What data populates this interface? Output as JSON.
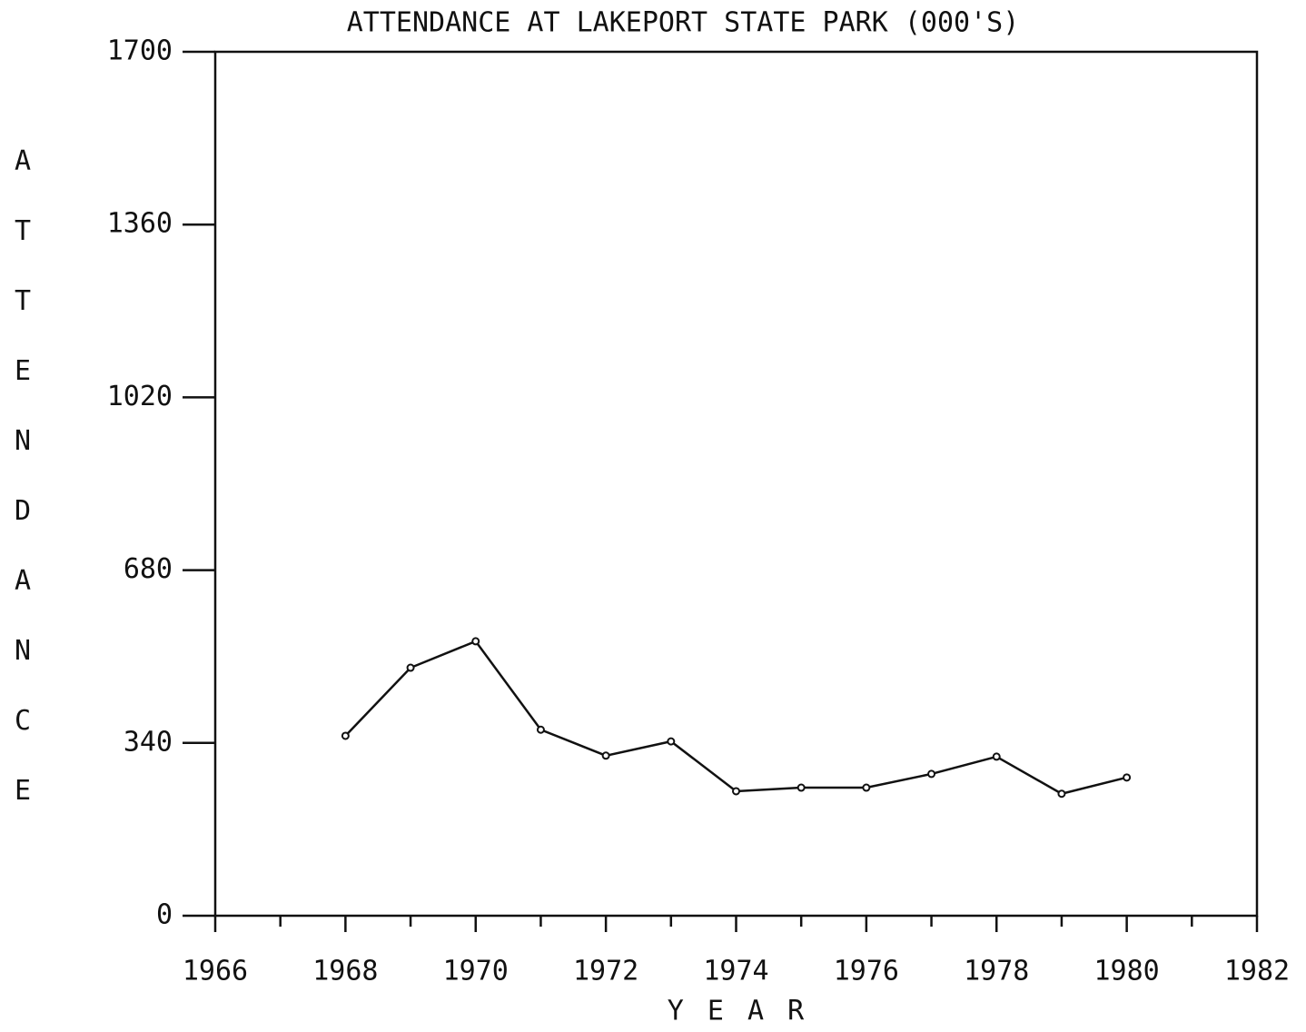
{
  "chart_data": {
    "type": "line",
    "title": "ATTENDANCE AT LAKEPORT STATE PARK (000'S)",
    "x_label": "Y E A R",
    "y_label": "ATTENDANCE",
    "x": [
      1968,
      1969,
      1970,
      1971,
      1972,
      1973,
      1974,
      1975,
      1976,
      1977,
      1978,
      1979,
      1980
    ],
    "series": [
      {
        "color": "#111111",
        "values": [
          354,
          488,
          540,
          366,
          315,
          343,
          245,
          252,
          252,
          279,
          313,
          240,
          272
        ]
      }
    ],
    "xlim": [
      1966,
      1982
    ],
    "xticks": [
      1966,
      1968,
      1970,
      1972,
      1974,
      1976,
      1978,
      1980,
      1982
    ],
    "xminorticks": [
      1967,
      1969,
      1971,
      1973,
      1975,
      1977,
      1979,
      1981
    ],
    "ylim": [
      0,
      1700
    ],
    "yticks": [
      0,
      340,
      680,
      1020,
      1360,
      1700
    ],
    "grid": false
  }
}
